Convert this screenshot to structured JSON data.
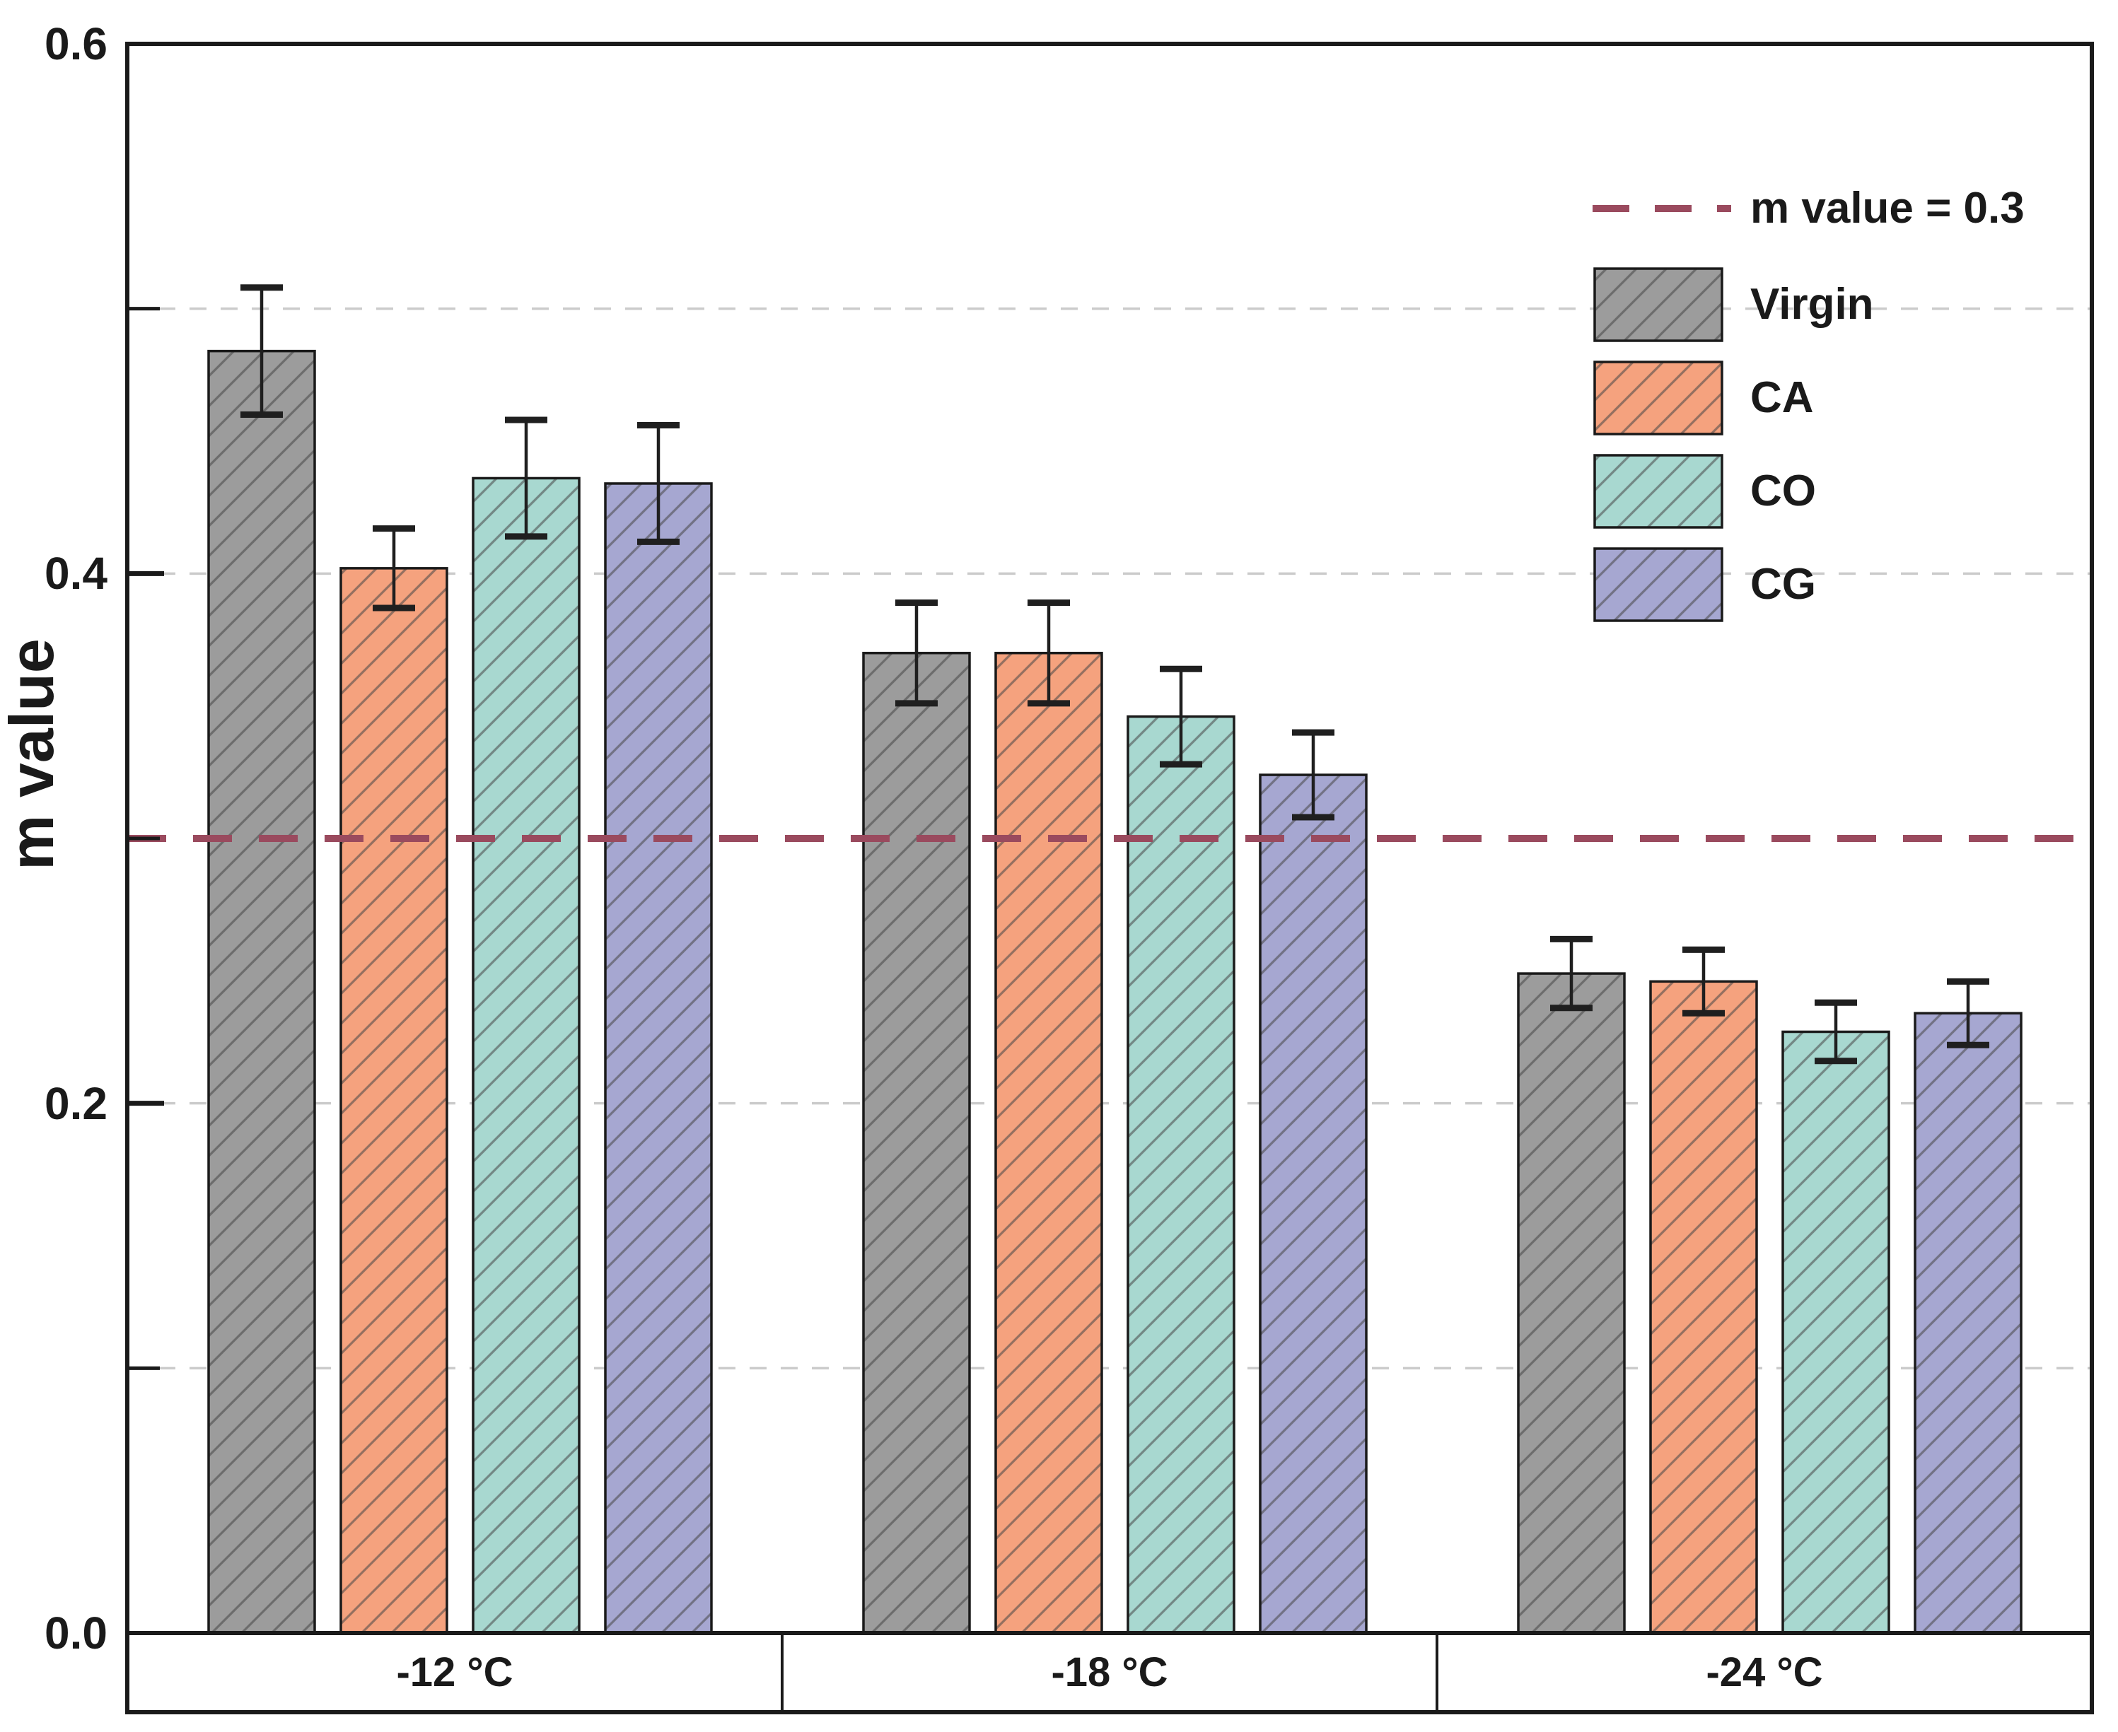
{
  "figure": {
    "background": "#ffffff",
    "axis_label": "m value",
    "text_color": "#1a1a1a",
    "reference_line": {
      "value": 0.3,
      "label": "m value = 0.3",
      "color": "#9a4a5e"
    },
    "y_axis": {
      "min": 0.0,
      "max": 0.6,
      "major_ticks": [
        {
          "value": 0.0,
          "label": "0.0"
        },
        {
          "value": 0.2,
          "label": "0.2"
        },
        {
          "value": 0.4,
          "label": "0.4"
        },
        {
          "value": 0.6,
          "label": "0.6"
        }
      ],
      "minor_ticks": [
        0.1,
        0.3,
        0.5
      ],
      "gridlines": [
        0.1,
        0.2,
        0.4,
        0.5
      ],
      "gridline_color": "#cbcbcb"
    },
    "hatch_color": "rgba(70,70,70,0.55)",
    "outline_color": "#1a1a1a"
  },
  "chart_data": {
    "type": "bar",
    "title": "",
    "xlabel": "",
    "ylabel": "m value",
    "ylim": [
      0.0,
      0.6
    ],
    "grid": "horizontal-dashed",
    "hatch": "diagonal-forward",
    "legend_position": "top-right",
    "categories": [
      "-12 °C",
      "-18 °C",
      "-24 °C"
    ],
    "series": [
      {
        "name": "Virgin",
        "color": "#9c9c9c",
        "values": [
          0.484,
          0.37,
          0.249
        ],
        "errors": [
          0.024,
          0.019,
          0.013
        ]
      },
      {
        "name": "CA",
        "color": "#f5a27e",
        "values": [
          0.402,
          0.37,
          0.246
        ],
        "errors": [
          0.015,
          0.019,
          0.012
        ]
      },
      {
        "name": "CO",
        "color": "#a8d8d0",
        "values": [
          0.436,
          0.346,
          0.227
        ],
        "errors": [
          0.022,
          0.018,
          0.011
        ]
      },
      {
        "name": "CG",
        "color": "#a6a7d1",
        "values": [
          0.434,
          0.324,
          0.234
        ],
        "errors": [
          0.022,
          0.016,
          0.012
        ]
      }
    ],
    "reference_line": {
      "value": 0.3,
      "label": "m value = 0.3"
    }
  }
}
